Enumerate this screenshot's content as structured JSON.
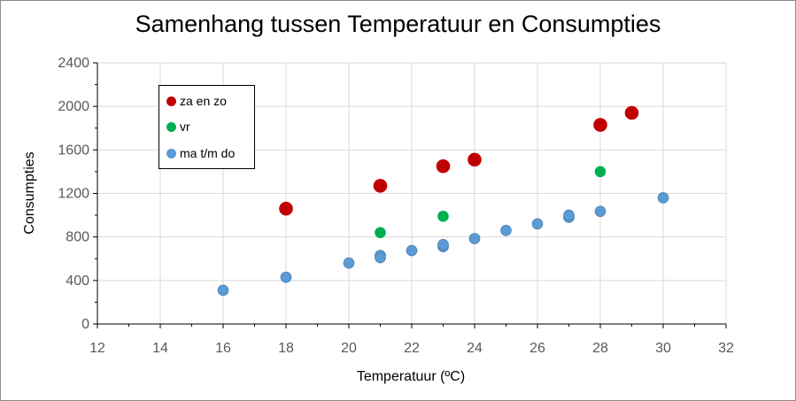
{
  "chart_data": {
    "type": "scatter",
    "title": "Samenhang tussen Temperatuur en Consumpties",
    "xlabel": "Temperatuur  (ºC)",
    "ylabel": "Consumpties",
    "xlim": [
      12,
      32
    ],
    "ylim": [
      0,
      2400
    ],
    "x_ticks": [
      12,
      14,
      16,
      18,
      20,
      22,
      24,
      26,
      28,
      30,
      32
    ],
    "y_ticks": [
      0,
      400,
      800,
      1200,
      1600,
      2000,
      2400
    ],
    "grid": true,
    "legend_position": "top-left",
    "series": [
      {
        "name": "za en zo",
        "color": "#c00000",
        "points": [
          [
            18,
            1060
          ],
          [
            21,
            1270
          ],
          [
            23,
            1450
          ],
          [
            24,
            1510
          ],
          [
            28,
            1830
          ],
          [
            29,
            1940
          ]
        ]
      },
      {
        "name": "vr",
        "color": "#00b050",
        "points": [
          [
            21,
            840
          ],
          [
            23,
            990
          ],
          [
            28,
            1400
          ]
        ]
      },
      {
        "name": "ma t/m do",
        "color": "#5b9bd5",
        "points": [
          [
            16,
            310
          ],
          [
            18,
            430
          ],
          [
            20,
            560
          ],
          [
            21,
            630
          ],
          [
            21,
            610
          ],
          [
            22,
            675
          ],
          [
            23,
            710
          ],
          [
            23,
            730
          ],
          [
            24,
            785
          ],
          [
            25,
            860
          ],
          [
            26,
            920
          ],
          [
            27,
            980
          ],
          [
            27,
            1000
          ],
          [
            28,
            1035
          ],
          [
            30,
            1160
          ]
        ]
      }
    ]
  }
}
